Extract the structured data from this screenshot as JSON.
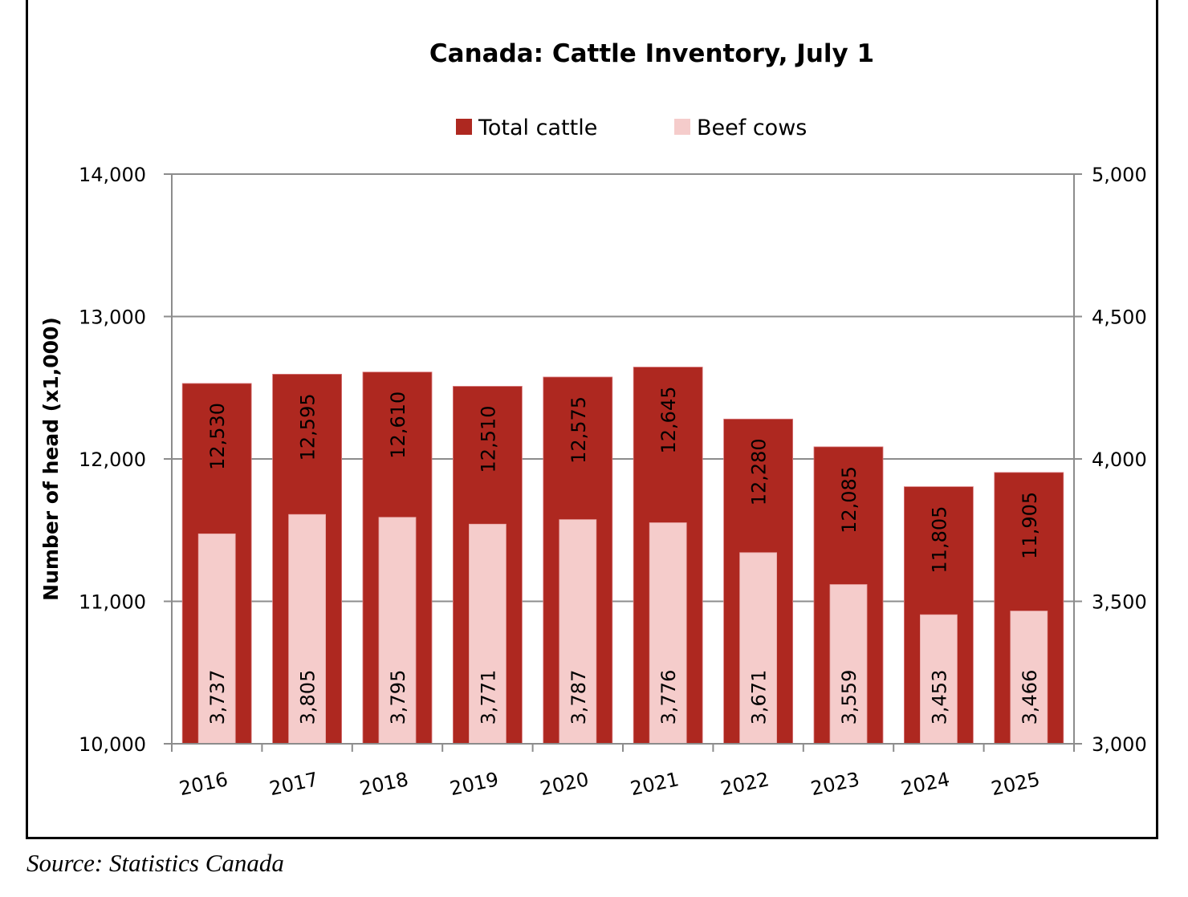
{
  "chart_data": {
    "type": "bar",
    "title": "Canada: Cattle Inventory, July 1",
    "ylabel": "Number of head (x1,000)",
    "xlabel": "",
    "categories": [
      "2016",
      "2017",
      "2018",
      "2019",
      "2020",
      "2021",
      "2022",
      "2023",
      "2024",
      "2025"
    ],
    "series": [
      {
        "name": "Total cattle",
        "axis": "left",
        "color": "#AE2820",
        "values": [
          12530,
          12595,
          12610,
          12510,
          12575,
          12645,
          12280,
          12085,
          11805,
          11905
        ],
        "labels": [
          "12,530",
          "12,595",
          "12,610",
          "12,510",
          "12,575",
          "12,645",
          "12,280",
          "12,085",
          "11,805",
          "11,905"
        ]
      },
      {
        "name": "Beef cows",
        "axis": "right",
        "color": "#F5CCCB",
        "values": [
          3737,
          3805,
          3795,
          3771,
          3787,
          3776,
          3671,
          3559,
          3453,
          3466
        ],
        "labels": [
          "3,737",
          "3,805",
          "3,795",
          "3,771",
          "3,787",
          "3,776",
          "3,671",
          "3,559",
          "3,453",
          "3,466"
        ]
      }
    ],
    "ylim": [
      10000,
      14000
    ],
    "y2lim": [
      3000,
      5000
    ],
    "yticks": [
      10000,
      11000,
      12000,
      13000,
      14000
    ],
    "ytick_labels": [
      "10,000",
      "11,000",
      "12,000",
      "13,000",
      "14,000"
    ],
    "y2ticks": [
      3000,
      3500,
      4000,
      4500,
      5000
    ],
    "y2tick_labels": [
      "3,000",
      "3,500",
      "4,000",
      "4,500",
      "5,000"
    ],
    "grid": true,
    "legend_position": "top-center"
  },
  "source": "Source: Statistics Canada"
}
